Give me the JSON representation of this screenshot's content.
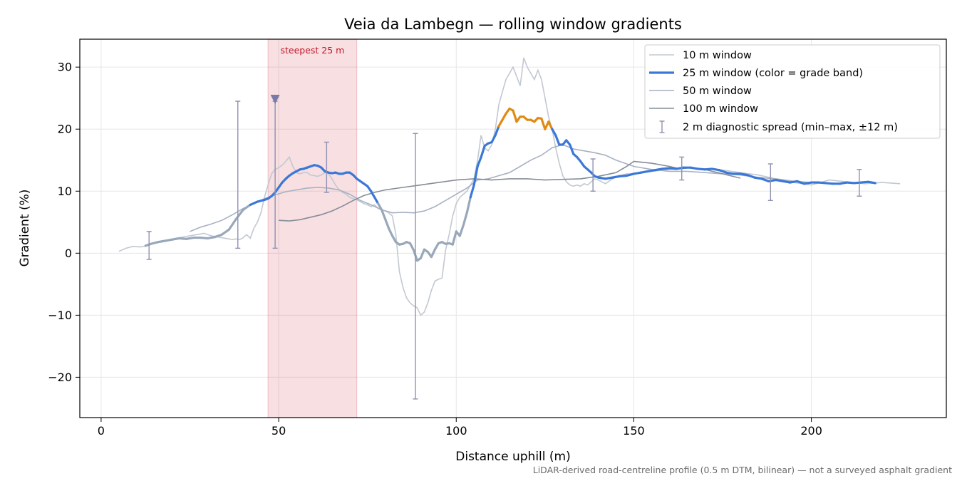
{
  "chart_data": {
    "type": "line",
    "title": "Veia da Lambegn — rolling window gradients",
    "xlabel": "Distance uphill (m)",
    "ylabel": "Gradient (%)",
    "xlim": [
      -6,
      238
    ],
    "ylim": [
      -26.5,
      34.5
    ],
    "xticks": [
      0,
      50,
      100,
      150,
      200
    ],
    "yticks": [
      -20,
      -10,
      0,
      10,
      20,
      30
    ],
    "xtick_labels": [
      "0",
      "50",
      "100",
      "150",
      "200"
    ],
    "ytick_labels": [
      "−20",
      "−10",
      "0",
      "10",
      "20",
      "30"
    ],
    "grid": true,
    "legend_position": "top-right",
    "highlight": {
      "x_start": 47,
      "x_end": 72,
      "label": "steepest 25 m",
      "color": "#d86070"
    },
    "marker": {
      "x": 49,
      "y": 24.8,
      "shape": "triangle-down",
      "color": "#7a7aa8"
    },
    "footnote": "LiDAR-derived road-centreline profile (0.5 m DTM, bilinear) — not a surveyed asphalt gradient",
    "series": [
      {
        "name": "10 m window",
        "color": "#c2c8d2",
        "x": [
          5,
          7,
          9,
          11,
          13,
          15,
          17,
          19,
          21,
          23,
          25,
          27,
          29,
          31,
          33,
          35,
          37,
          38,
          39,
          40,
          41,
          42,
          43,
          44,
          45,
          46,
          47,
          48,
          49,
          50,
          51,
          52,
          53,
          54,
          55,
          56,
          57,
          58,
          59,
          60,
          61,
          62,
          63,
          64,
          65,
          66,
          67,
          68,
          69,
          70,
          71,
          72,
          73,
          74,
          75,
          76,
          77,
          78,
          79,
          80,
          81,
          82,
          83,
          84,
          85,
          86,
          87,
          88,
          89,
          90,
          91,
          92,
          93,
          94,
          95,
          96,
          97,
          98,
          99,
          100,
          101,
          102,
          103,
          104,
          105,
          106,
          107,
          108,
          109,
          110,
          111,
          112,
          113,
          114,
          115,
          116,
          117,
          118,
          119,
          120,
          121,
          122,
          123,
          124,
          125,
          126,
          127,
          128,
          129,
          130,
          131,
          132,
          133,
          134,
          135,
          136,
          137,
          138,
          139,
          140,
          141,
          142,
          144,
          146,
          148,
          150,
          155,
          160,
          165,
          170,
          175,
          180,
          185,
          190,
          195,
          200,
          205,
          210,
          215,
          220,
          225
        ],
        "values": [
          0.3,
          0.8,
          1.1,
          1.0,
          1.2,
          1.6,
          1.8,
          2.0,
          2.4,
          2.6,
          2.8,
          3.0,
          3.2,
          2.8,
          2.6,
          2.4,
          2.2,
          2.3,
          2.2,
          2.5,
          3.0,
          2.4,
          4.0,
          5.0,
          6.5,
          9.0,
          11.0,
          12.8,
          13.5,
          13.8,
          14.2,
          14.8,
          15.5,
          14.0,
          13.0,
          12.8,
          13.0,
          13.0,
          12.6,
          12.5,
          12.4,
          12.6,
          13.0,
          12.8,
          12.0,
          11.0,
          10.2,
          9.8,
          9.5,
          9.0,
          8.8,
          8.6,
          8.3,
          8.0,
          7.8,
          7.5,
          7.8,
          7.2,
          7.0,
          6.8,
          6.5,
          6.0,
          3.0,
          -3.0,
          -5.5,
          -7.2,
          -8.0,
          -8.5,
          -8.8,
          -10.0,
          -9.5,
          -8.0,
          -6.0,
          -4.5,
          -4.2,
          -4.0,
          0.5,
          3.0,
          6.0,
          8.0,
          9.0,
          9.5,
          10.0,
          11.0,
          12.0,
          15.0,
          19.0,
          17.0,
          16.5,
          17.5,
          20.0,
          24.0,
          26.0,
          28.0,
          29.0,
          30.0,
          28.5,
          27.0,
          31.5,
          30.0,
          29.0,
          28.0,
          29.5,
          28.0,
          25.0,
          22.0,
          20.0,
          17.0,
          14.5,
          12.5,
          11.5,
          11.0,
          10.8,
          11.0,
          10.8,
          11.2,
          11.0,
          11.5,
          12.0,
          11.8,
          11.5,
          11.2,
          12.0,
          12.5,
          12.8,
          12.8,
          13.2,
          13.5,
          13.8,
          13.6,
          13.4,
          13.0,
          12.6,
          12.0,
          11.4,
          11.0,
          11.8,
          11.5,
          11.2,
          11.4,
          11.2
        ]
      },
      {
        "name": "25 m window (color = grade band)",
        "color": "#3a78d8",
        "band_colors": {
          "low": "#98a8ba",
          "mid": "#3a78d8",
          "high": "#e08a12"
        },
        "x": [
          12.5,
          14,
          16,
          18,
          20,
          22,
          24,
          26,
          28,
          30,
          32,
          34,
          36,
          38,
          40,
          42,
          44,
          46,
          47,
          48,
          49,
          50,
          51,
          52,
          53,
          54,
          55,
          56,
          57,
          58,
          59,
          60,
          61,
          62,
          63,
          64,
          65,
          66,
          67,
          68,
          69,
          70,
          71,
          72,
          73,
          74,
          75,
          76,
          77,
          78,
          79,
          80,
          81,
          82,
          83,
          84,
          85,
          86,
          87,
          88,
          89,
          90,
          91,
          92,
          93,
          94,
          95,
          96,
          97,
          98,
          99,
          100,
          101,
          102,
          103,
          104,
          105,
          106,
          107,
          108,
          109,
          110,
          111,
          112,
          113,
          114,
          115,
          116,
          117,
          118,
          119,
          120,
          121,
          122,
          123,
          124,
          125,
          126,
          127,
          128,
          129,
          130,
          131,
          132,
          133,
          134,
          135,
          136,
          137,
          138,
          139,
          140,
          142,
          144,
          146,
          148,
          150,
          152,
          154,
          156,
          158,
          160,
          162,
          164,
          166,
          168,
          170,
          172,
          174,
          176,
          178,
          180,
          182,
          184,
          186,
          188,
          190,
          192,
          194,
          196,
          198,
          200,
          202,
          204,
          206,
          208,
          210,
          212,
          214,
          216,
          218
        ],
        "values": [
          1.2,
          1.5,
          1.8,
          2.0,
          2.2,
          2.4,
          2.3,
          2.5,
          2.5,
          2.4,
          2.6,
          3.0,
          3.8,
          5.5,
          7.0,
          7.8,
          8.3,
          8.6,
          8.8,
          9.2,
          9.8,
          10.6,
          11.4,
          12.0,
          12.5,
          12.9,
          13.2,
          13.5,
          13.6,
          13.8,
          14.0,
          14.2,
          14.1,
          13.8,
          13.2,
          13.0,
          12.9,
          13.0,
          12.8,
          12.8,
          13.0,
          13.0,
          12.6,
          12.0,
          11.6,
          11.2,
          10.8,
          10.0,
          9.0,
          8.0,
          7.0,
          5.5,
          4.0,
          2.8,
          1.8,
          1.4,
          1.5,
          1.8,
          1.6,
          0.5,
          -1.2,
          -0.8,
          0.6,
          0.2,
          -0.6,
          0.6,
          1.6,
          1.8,
          1.5,
          1.6,
          1.4,
          3.5,
          2.8,
          4.5,
          6.5,
          9.0,
          11.0,
          14.0,
          15.5,
          17.3,
          17.7,
          17.9,
          19.0,
          20.5,
          21.5,
          22.5,
          23.3,
          23.0,
          21.2,
          22.0,
          22.0,
          21.5,
          21.5,
          21.2,
          21.8,
          21.7,
          20.0,
          21.2,
          20.0,
          19.0,
          17.5,
          17.5,
          18.2,
          17.5,
          16.0,
          15.5,
          14.8,
          14.0,
          13.5,
          13.0,
          12.4,
          12.2,
          12.0,
          12.2,
          12.4,
          12.5,
          12.8,
          13.0,
          13.2,
          13.4,
          13.6,
          13.7,
          13.6,
          13.8,
          13.8,
          13.6,
          13.5,
          13.6,
          13.4,
          13.0,
          12.8,
          12.8,
          12.6,
          12.2,
          12.0,
          11.6,
          11.8,
          11.6,
          11.4,
          11.6,
          11.2,
          11.4,
          11.4,
          11.3,
          11.2,
          11.2,
          11.4,
          11.3,
          11.4,
          11.5,
          11.3
        ]
      },
      {
        "name": "50 m window",
        "color": "#a7b1c2",
        "x": [
          25,
          28,
          31,
          34,
          37,
          40,
          43,
          46,
          49,
          52,
          55,
          58,
          61,
          64,
          67,
          70,
          73,
          76,
          79,
          82,
          85,
          88,
          91,
          94,
          97,
          100,
          103,
          106,
          109,
          112,
          115,
          118,
          121,
          124,
          127,
          130,
          133,
          136,
          139,
          142,
          145,
          150,
          155,
          160,
          165,
          170,
          175,
          180,
          185,
          190,
          195,
          200
        ],
        "values": [
          3.5,
          4.2,
          4.7,
          5.3,
          6.2,
          7.2,
          8.0,
          8.8,
          9.4,
          9.9,
          10.2,
          10.5,
          10.6,
          10.5,
          10.2,
          9.5,
          8.5,
          7.8,
          7.0,
          6.5,
          6.6,
          6.5,
          6.8,
          7.5,
          8.5,
          9.5,
          10.5,
          11.8,
          12.0,
          12.5,
          13.0,
          14.0,
          15.0,
          15.8,
          17.0,
          17.5,
          16.8,
          16.5,
          16.2,
          15.8,
          15.0,
          14.0,
          13.5,
          13.2,
          13.2,
          13.0,
          12.8,
          12.6,
          12.2,
          12.0,
          11.6,
          11.4
        ]
      },
      {
        "name": "100 m window",
        "color": "#848d99",
        "x": [
          50,
          53,
          56,
          59,
          62,
          65,
          68,
          71,
          74,
          77,
          80,
          85,
          90,
          95,
          100,
          105,
          110,
          115,
          120,
          125,
          130,
          135,
          140,
          145,
          148,
          150,
          155,
          160,
          163,
          166,
          170,
          175,
          180
        ],
        "values": [
          5.3,
          5.2,
          5.4,
          5.8,
          6.2,
          6.8,
          7.6,
          8.5,
          9.3,
          9.8,
          10.2,
          10.6,
          11.0,
          11.4,
          11.8,
          12.0,
          11.8,
          12.0,
          12.0,
          11.8,
          11.9,
          12.0,
          12.4,
          13.0,
          14.0,
          14.8,
          14.5,
          14.0,
          13.6,
          13.8,
          13.5,
          12.8,
          12.1
        ]
      },
      {
        "name": "2 m diagnostic spread (min–max, ±12 m)",
        "color": "#9090b4",
        "x": [
          13.5,
          38.5,
          49,
          63.5,
          88.5,
          138.5,
          163.5,
          188.5,
          213.5
        ],
        "y": [
          1.2,
          4.2,
          10.0,
          12.5,
          2.2,
          12.5,
          13.5,
          11.3,
          11.5
        ],
        "min": [
          -1.0,
          0.8,
          0.8,
          9.8,
          -23.5,
          10.0,
          11.8,
          8.5,
          9.2
        ],
        "max": [
          3.5,
          24.5,
          24.5,
          17.9,
          19.3,
          15.2,
          15.5,
          14.4,
          13.5
        ]
      }
    ]
  }
}
